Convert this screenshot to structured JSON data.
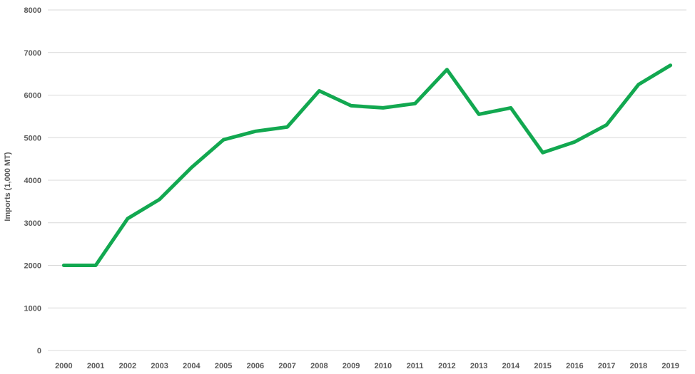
{
  "chart_data": {
    "type": "line",
    "title": "",
    "xlabel": "",
    "ylabel": "Imports (1,000 MT)",
    "categories": [
      "2000",
      "2001",
      "2002",
      "2003",
      "2004",
      "2005",
      "2006",
      "2007",
      "2008",
      "2009",
      "2010",
      "2011",
      "2012",
      "2013",
      "2014",
      "2015",
      "2016",
      "2017",
      "2018",
      "2019"
    ],
    "series": [
      {
        "name": "Imports",
        "values": [
          2000,
          2000,
          3100,
          3550,
          4300,
          4950,
          5150,
          5250,
          6100,
          5750,
          5700,
          5800,
          6600,
          5550,
          5700,
          4650,
          4900,
          5300,
          6250,
          6700
        ]
      }
    ],
    "ylim": [
      0,
      8000
    ],
    "yticks": [
      0,
      1000,
      2000,
      3000,
      4000,
      5000,
      6000,
      7000,
      8000
    ],
    "grid": true,
    "legend_position": "none",
    "colors": {
      "line": "#12A850",
      "axis_text": "#595959",
      "gridline": "#D9D9D9",
      "background": "#FFFFFF"
    }
  }
}
